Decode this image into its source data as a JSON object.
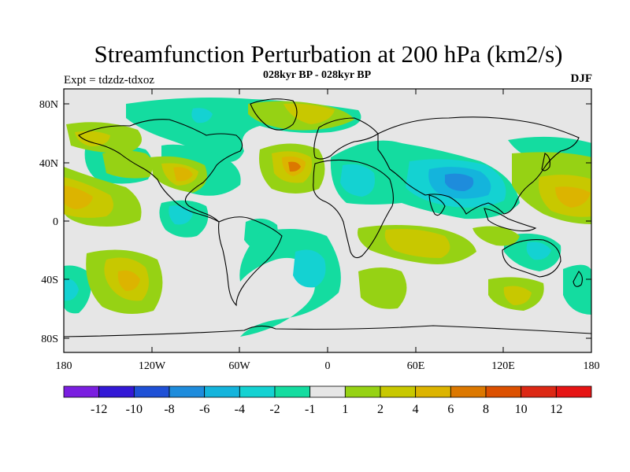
{
  "header": {
    "title": "Streamfunction Perturbation at 200 hPa (km2/s)",
    "subtitle": "028kyr BP - 028kyr BP",
    "experiment": "Expt = tdzdz-tdxoz",
    "season": "DJF"
  },
  "map": {
    "y_ticks": [
      "80N",
      "40N",
      "0",
      "40S",
      "80S"
    ],
    "x_ticks": [
      "180",
      "120W",
      "60W",
      "0",
      "60E",
      "120E",
      "180"
    ]
  },
  "colorbar": {
    "labels": [
      "-12",
      "-10",
      "-8",
      "-6",
      "-4",
      "-2",
      "-1",
      "1",
      "2",
      "4",
      "6",
      "8",
      "10",
      "12"
    ],
    "colors": [
      "#7a1ee0",
      "#3318d6",
      "#1e50d6",
      "#1e8cdc",
      "#14b4dc",
      "#14d2d2",
      "#14dca0",
      "#e6e6e6",
      "#96d214",
      "#c8c800",
      "#dcb400",
      "#dc7800",
      "#dc5000",
      "#dc2814",
      "#e61414"
    ]
  }
}
